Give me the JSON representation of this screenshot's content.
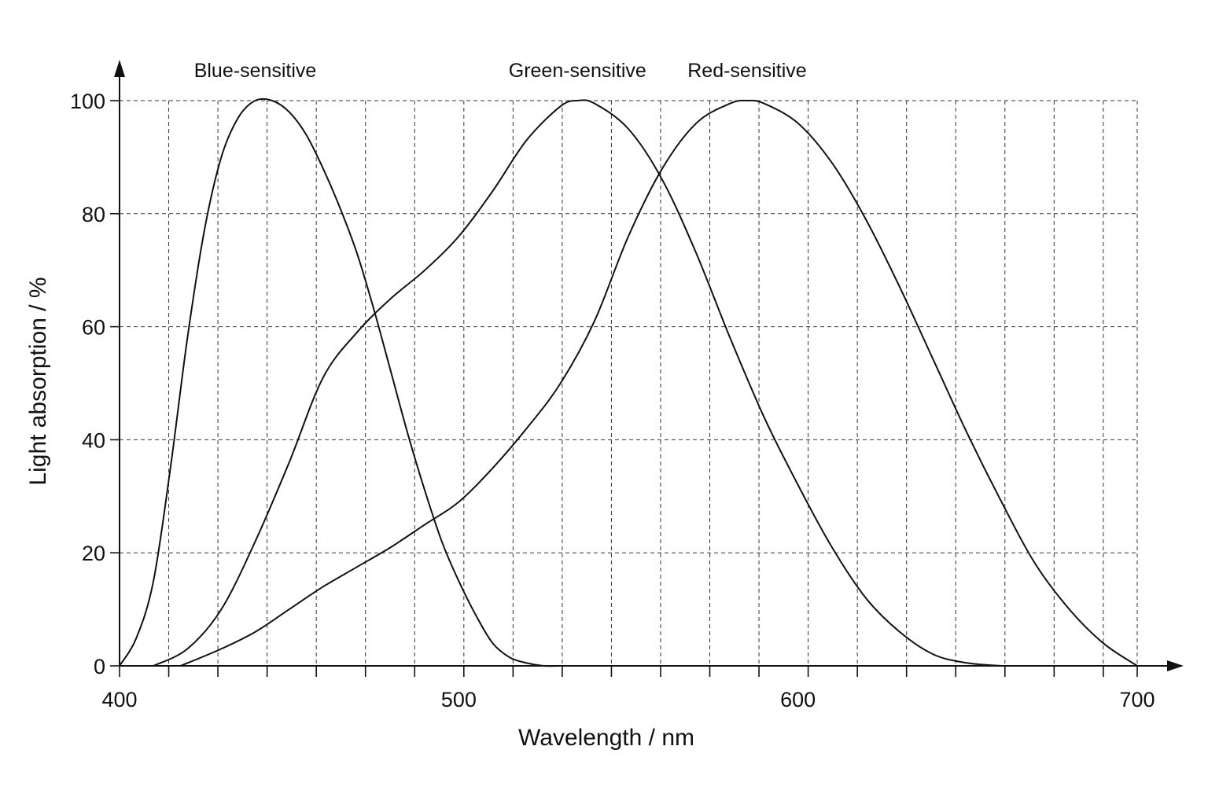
{
  "chart_data": {
    "type": "line",
    "title": "",
    "xlabel": "Wavelength / nm",
    "ylabel": "Light absorption / %",
    "xlim": [
      400,
      700
    ],
    "ylim": [
      0,
      100
    ],
    "x_ticks": [
      400,
      500,
      600,
      700
    ],
    "y_ticks": [
      0,
      20,
      40,
      60,
      80,
      100
    ],
    "x_minor_step": 14.5,
    "grid": true,
    "grid_style": "dashed",
    "legend": "none",
    "series": [
      {
        "name": "Blue-sensitive",
        "color": "#111111",
        "x": [
          400,
          405,
          410,
          415,
          420,
          425,
          430,
          435,
          440,
          445,
          450,
          455,
          460,
          465,
          470,
          475,
          480,
          485,
          490,
          495,
          500,
          505,
          510,
          515,
          520,
          525,
          530,
          535
        ],
        "y": [
          0,
          5,
          15,
          35,
          58,
          77,
          90,
          97,
          100,
          100,
          98,
          94,
          88,
          81,
          73,
          63,
          52,
          41,
          31,
          22,
          15,
          9,
          4,
          1.5,
          0.5,
          0,
          0,
          0
        ]
      },
      {
        "name": "Green-sensitive",
        "color": "#111111",
        "x": [
          410,
          420,
          430,
          440,
          450,
          460,
          470,
          480,
          490,
          500,
          510,
          520,
          530,
          535,
          540,
          550,
          560,
          570,
          580,
          590,
          600,
          610,
          620,
          630,
          640,
          650,
          660
        ],
        "y": [
          0,
          3,
          10,
          22,
          36,
          51,
          59,
          65,
          70,
          76,
          84,
          93,
          99,
          100,
          99.5,
          95,
          86,
          73,
          58,
          44,
          32,
          21,
          12,
          6,
          2,
          0.5,
          0
        ]
      },
      {
        "name": "Red-sensitive",
        "color": "#111111",
        "x": [
          418,
          430,
          440,
          450,
          460,
          470,
          480,
          490,
          500,
          510,
          520,
          530,
          540,
          550,
          560,
          570,
          580,
          585,
          590,
          600,
          610,
          620,
          630,
          640,
          650,
          660,
          670,
          680,
          690,
          700
        ],
        "y": [
          0,
          3,
          6,
          10,
          14,
          17.5,
          21,
          25,
          29,
          35,
          42,
          50,
          61,
          76,
          88,
          96,
          99.5,
          100,
          99.5,
          96,
          89,
          79,
          67,
          54,
          41,
          29,
          18,
          10,
          4,
          0
        ]
      }
    ]
  }
}
